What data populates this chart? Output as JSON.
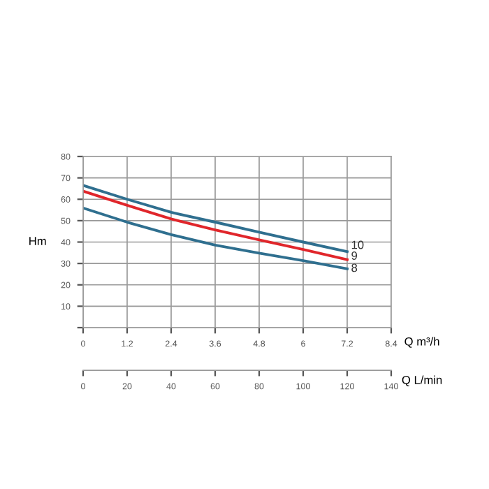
{
  "chart_data": {
    "type": "line",
    "ylabel": "Hm",
    "xlabel": "Q m³/h",
    "x2label": "Q L/min",
    "x": [
      0,
      1.2,
      2.4,
      3.6,
      4.8,
      6,
      7.2
    ],
    "series": [
      {
        "name": "10",
        "color": "#2f6f8f",
        "values": [
          66.5,
          60,
          53.9,
          49.3,
          44.6,
          40,
          35.5
        ]
      },
      {
        "name": "9",
        "color": "#e0262b",
        "values": [
          63.8,
          57.2,
          50.8,
          45.7,
          41,
          36.5,
          31.8
        ]
      },
      {
        "name": "8",
        "color": "#2f6f8f",
        "values": [
          55.9,
          49.3,
          43.5,
          38.6,
          34.8,
          31.3,
          27.5
        ]
      }
    ],
    "xlim": [
      0,
      8.4
    ],
    "xticks": [
      0,
      1.2,
      2.4,
      3.6,
      4.8,
      6,
      7.2,
      8.4
    ],
    "x2lim": [
      0,
      140
    ],
    "x2ticks": [
      0,
      20,
      40,
      60,
      80,
      100,
      120,
      140
    ],
    "ylim": [
      0,
      80
    ],
    "yticks": [
      {
        "value": 0,
        "label": null
      },
      10,
      20,
      30,
      40,
      50,
      60,
      70,
      80
    ],
    "grid": true,
    "legend": false,
    "marker": "none",
    "line_style": "solid"
  }
}
